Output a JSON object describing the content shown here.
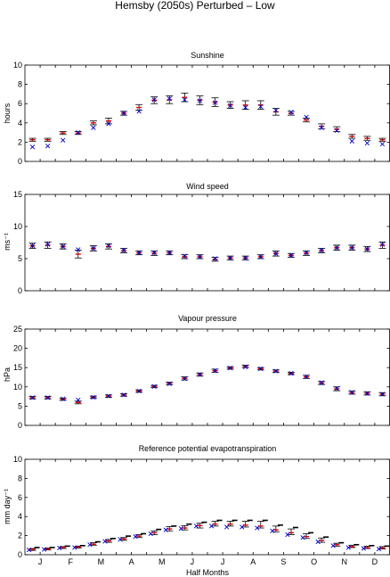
{
  "figure": {
    "title": "Hemsby (2050s) Perturbed – Low"
  },
  "chart_data": [
    {
      "type": "errorbar",
      "title": "Sunshine",
      "ylabel": "hours",
      "ylim": [
        0,
        10
      ],
      "yticks": [
        0,
        2,
        4,
        6,
        8,
        10
      ],
      "grid": false,
      "x": [
        1,
        2,
        3,
        4,
        5,
        6,
        7,
        8,
        9,
        10,
        11,
        12,
        13,
        14,
        15,
        16,
        17,
        18,
        19,
        20,
        21,
        22,
        23,
        24
      ],
      "series": [
        {
          "role": "upper",
          "values": [
            2.4,
            2.4,
            3.1,
            3.1,
            4.2,
            4.5,
            5.2,
            5.9,
            6.7,
            6.8,
            7.1,
            6.8,
            6.6,
            6.2,
            6.3,
            6.3,
            5.5,
            5.2,
            4.5,
            3.9,
            3.6,
            2.8,
            2.6,
            2.4
          ]
        },
        {
          "role": "lower",
          "values": [
            2.1,
            2.1,
            2.8,
            2.8,
            3.8,
            3.9,
            4.8,
            5.3,
            6.0,
            6.0,
            6.2,
            5.9,
            5.7,
            5.5,
            5.4,
            5.4,
            4.8,
            4.8,
            4.1,
            3.4,
            3.1,
            2.4,
            2.2,
            2.1
          ]
        },
        {
          "role": "mean",
          "values": [
            2.25,
            2.25,
            2.95,
            2.95,
            4.0,
            4.2,
            5.0,
            5.6,
            6.35,
            6.4,
            6.65,
            6.35,
            6.15,
            5.85,
            5.85,
            5.85,
            5.15,
            5.0,
            4.3,
            3.65,
            3.35,
            2.6,
            2.4,
            2.25
          ]
        },
        {
          "role": "observed",
          "values": [
            1.5,
            1.6,
            2.2,
            3.0,
            3.5,
            3.9,
            5.0,
            5.2,
            6.4,
            6.5,
            6.4,
            6.3,
            6.1,
            5.8,
            5.6,
            5.7,
            5.3,
            5.1,
            4.6,
            3.5,
            3.2,
            2.1,
            1.9,
            1.8
          ]
        }
      ]
    },
    {
      "type": "errorbar",
      "title": "Wind speed",
      "ylabel": "ms⁻¹",
      "ylim": [
        0,
        15
      ],
      "yticks": [
        0,
        5,
        10,
        15
      ],
      "grid": false,
      "x": [
        1,
        2,
        3,
        4,
        5,
        6,
        7,
        8,
        9,
        10,
        11,
        12,
        13,
        14,
        15,
        16,
        17,
        18,
        19,
        20,
        21,
        22,
        23,
        24
      ],
      "series": [
        {
          "role": "upper",
          "values": [
            7.4,
            7.6,
            7.3,
            6.3,
            7.0,
            7.3,
            6.6,
            6.2,
            6.2,
            6.2,
            5.6,
            5.6,
            5.2,
            5.4,
            5.4,
            5.6,
            6.2,
            5.8,
            6.2,
            6.6,
            7.1,
            7.1,
            6.9,
            7.6
          ]
        },
        {
          "role": "lower",
          "values": [
            6.6,
            6.6,
            6.5,
            5.1,
            6.2,
            6.5,
            5.9,
            5.6,
            5.5,
            5.6,
            5.0,
            5.0,
            4.6,
            4.8,
            4.8,
            5.0,
            5.4,
            5.2,
            5.5,
            5.9,
            6.3,
            6.3,
            6.1,
            6.6
          ]
        },
        {
          "role": "mean",
          "values": [
            7.0,
            7.1,
            6.9,
            5.7,
            6.6,
            6.9,
            6.25,
            5.9,
            5.85,
            5.9,
            5.3,
            5.3,
            4.9,
            5.1,
            5.1,
            5.3,
            5.8,
            5.5,
            5.85,
            6.25,
            6.7,
            6.7,
            6.5,
            7.1
          ]
        },
        {
          "role": "observed",
          "values": [
            7.0,
            7.2,
            6.9,
            6.4,
            6.6,
            7.0,
            6.3,
            5.9,
            5.9,
            5.9,
            5.4,
            5.3,
            5.0,
            5.1,
            5.1,
            5.3,
            5.8,
            5.5,
            5.9,
            6.3,
            6.7,
            6.7,
            6.5,
            7.2
          ]
        }
      ]
    },
    {
      "type": "errorbar",
      "title": "Vapour pressure",
      "ylabel": "hPa",
      "ylim": [
        0,
        25
      ],
      "yticks": [
        0,
        5,
        10,
        15,
        20,
        25
      ],
      "grid": false,
      "x": [
        1,
        2,
        3,
        4,
        5,
        6,
        7,
        8,
        9,
        10,
        11,
        12,
        13,
        14,
        15,
        16,
        17,
        18,
        19,
        20,
        21,
        22,
        23,
        24
      ],
      "series": [
        {
          "role": "upper",
          "values": [
            7.5,
            7.5,
            7.1,
            6.3,
            7.6,
            7.9,
            8.2,
            9.2,
            10.4,
            11.2,
            12.6,
            13.6,
            14.6,
            15.2,
            15.6,
            15.0,
            14.4,
            13.8,
            13.0,
            11.4,
            10.0,
            8.9,
            8.7,
            8.5
          ]
        },
        {
          "role": "lower",
          "values": [
            6.9,
            6.9,
            6.5,
            5.6,
            7.0,
            7.3,
            7.6,
            8.6,
            9.8,
            10.6,
            11.8,
            12.8,
            13.8,
            14.6,
            15.0,
            14.4,
            13.8,
            13.2,
            12.2,
            10.6,
            9.0,
            8.1,
            7.9,
            7.7
          ]
        },
        {
          "role": "mean",
          "values": [
            7.2,
            7.2,
            6.8,
            5.95,
            7.3,
            7.6,
            7.9,
            8.9,
            10.1,
            10.9,
            12.2,
            13.2,
            14.2,
            14.9,
            15.3,
            14.7,
            14.1,
            13.5,
            12.6,
            11.0,
            9.5,
            8.5,
            8.3,
            8.1
          ]
        },
        {
          "role": "observed",
          "values": [
            7.2,
            7.2,
            6.9,
            6.6,
            7.3,
            7.6,
            7.9,
            8.9,
            10.1,
            10.8,
            12.1,
            13.2,
            14.2,
            14.9,
            15.2,
            14.7,
            14.1,
            13.5,
            12.6,
            11.1,
            9.6,
            8.6,
            8.3,
            8.1
          ]
        }
      ]
    },
    {
      "type": "errorbar",
      "title": "Reference potential evapotranspiration",
      "ylabel": "mm day⁻¹",
      "xlabel": "Half Months",
      "ylim": [
        0,
        10
      ],
      "yticks": [
        0,
        2,
        4,
        6,
        8,
        10
      ],
      "grid": false,
      "categories": [
        "J",
        "F",
        "M",
        "A",
        "M",
        "J",
        "J",
        "A",
        "S",
        "O",
        "N",
        "D"
      ],
      "x": [
        1,
        2,
        3,
        4,
        5,
        6,
        7,
        8,
        9,
        10,
        11,
        12,
        13,
        14,
        15,
        16,
        17,
        18,
        19,
        20,
        21,
        22,
        23,
        24
      ],
      "series": [
        {
          "role": "upper",
          "values": [
            0.65,
            0.7,
            0.85,
            0.9,
            1.25,
            1.6,
            1.8,
            2.1,
            2.5,
            2.95,
            3.05,
            3.3,
            3.5,
            3.5,
            3.5,
            3.5,
            3.0,
            2.7,
            2.2,
            1.75,
            1.2,
            1.0,
            0.9,
            0.85
          ]
        },
        {
          "role": "lower",
          "values": [
            0.45,
            0.5,
            0.65,
            0.7,
            1.0,
            1.3,
            1.5,
            1.8,
            2.1,
            2.5,
            2.6,
            2.8,
            3.0,
            3.0,
            2.9,
            2.8,
            2.4,
            2.1,
            1.7,
            1.3,
            0.9,
            0.75,
            0.65,
            0.6
          ]
        },
        {
          "role": "mean",
          "values": [
            0.55,
            0.6,
            0.75,
            0.8,
            1.1,
            1.45,
            1.65,
            1.95,
            2.3,
            2.7,
            2.8,
            3.05,
            3.2,
            3.2,
            3.1,
            3.0,
            2.6,
            2.3,
            1.9,
            1.5,
            1.05,
            0.85,
            0.75,
            0.7
          ]
        },
        {
          "role": "observed",
          "values": [
            0.5,
            0.55,
            0.7,
            0.75,
            1.05,
            1.4,
            1.6,
            1.9,
            2.2,
            2.6,
            2.75,
            3.0,
            3.0,
            2.9,
            2.9,
            2.8,
            2.5,
            2.1,
            1.8,
            1.35,
            0.95,
            0.75,
            0.65,
            0.6
          ]
        },
        {
          "role": "reference",
          "values": [
            0.75,
            0.75,
            0.9,
            0.95,
            1.35,
            1.7,
            1.95,
            2.2,
            2.65,
            3.0,
            3.2,
            3.4,
            3.6,
            3.6,
            3.6,
            3.6,
            3.1,
            2.85,
            2.3,
            1.85,
            1.25,
            1.05,
            0.95,
            0.9
          ]
        }
      ]
    }
  ]
}
